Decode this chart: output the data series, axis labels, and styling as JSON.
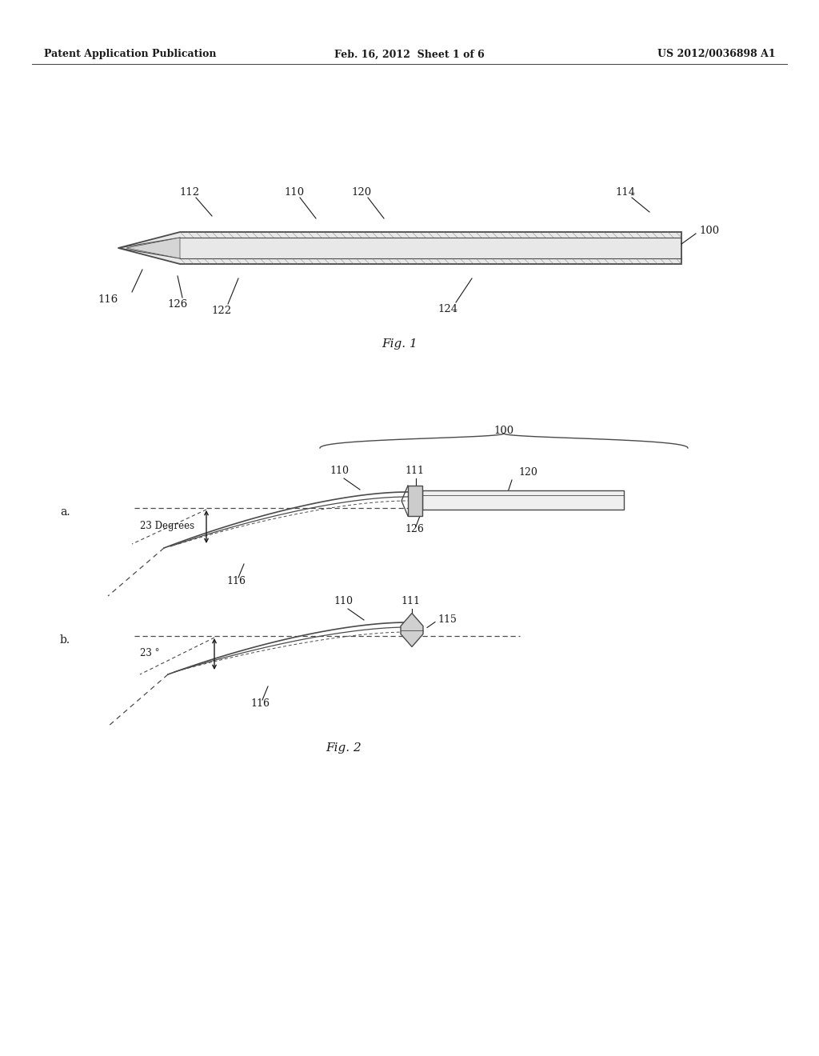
{
  "bg_color": "#ffffff",
  "header_left": "Patent Application Publication",
  "header_center": "Feb. 16, 2012  Sheet 1 of 6",
  "header_right": "US 2012/0036898 A1",
  "fig1_caption": "Fig. 1",
  "fig2_caption": "Fig. 2",
  "label_color": "#1a1a1a",
  "line_color": "#4a4a4a"
}
